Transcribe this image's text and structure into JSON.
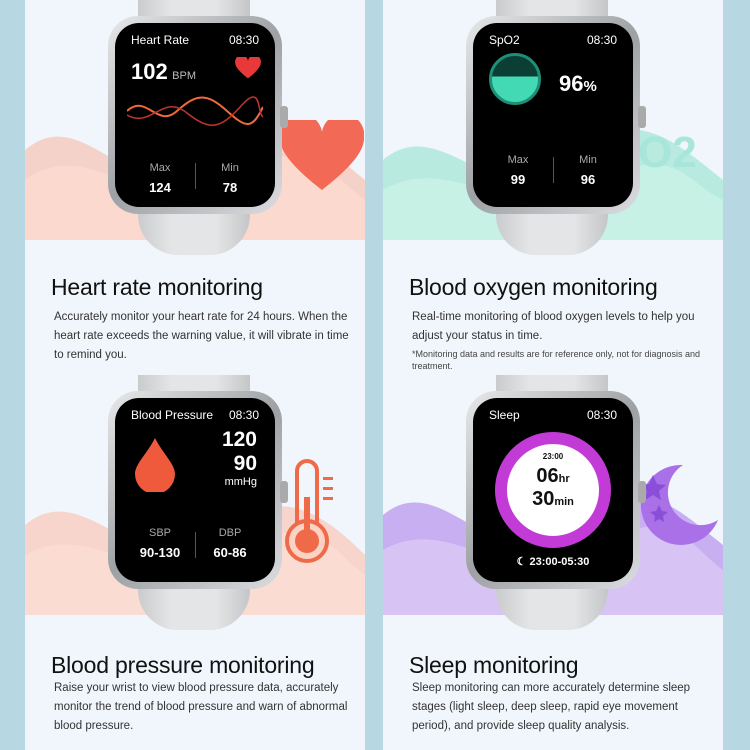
{
  "panels": [
    {
      "screen_title": "Heart Rate",
      "time": "08:30",
      "value": "102",
      "unit": "BPM",
      "left_label": "Max",
      "left_value": "124",
      "right_label": "Min",
      "right_value": "78",
      "heading": "Heart rate monitoring",
      "description": "Accurately monitor your heart rate for 24 hours. When the heart rate exceeds the warning value, it will vibrate in time to remind you."
    },
    {
      "screen_title": "SpO2",
      "time": "08:30",
      "value": "96",
      "unit": "%",
      "left_label": "Max",
      "left_value": "99",
      "right_label": "Min",
      "right_value": "96",
      "heading": "Blood oxygen monitoring",
      "description": "Real-time monitoring of blood oxygen levels to help you adjust your status in time.",
      "note": "*Monitoring data and results are for reference only, not for diagnosis and treatment.",
      "decor_text": "O2"
    },
    {
      "screen_title": "Blood Pressure",
      "time": "08:30",
      "systolic": "120",
      "diastolic": "90",
      "unit": "mmHg",
      "left_label": "SBP",
      "left_value": "90-130",
      "right_label": "DBP",
      "right_value": "60-86",
      "heading": "Blood pressure monitoring",
      "description": "Raise your wrist to view blood pressure data, accurately monitor the trend of blood pressure and warn of abnormal blood pressure."
    },
    {
      "screen_title": "Sleep",
      "time": "08:30",
      "dial_time": "23:00",
      "hours": "06",
      "hours_unit": "hr",
      "minutes": "30",
      "minutes_unit": "min",
      "range": "23:00-05:30",
      "heading": "Sleep monitoring",
      "description": "Sleep monitoring can more accurately determine sleep stages (light sleep, deep sleep, rapid eye movement period), and provide sleep quality analysis."
    }
  ],
  "colors": {
    "heart": "#f0503f",
    "spo2": "#3fd1b0",
    "bp": "#f06040",
    "sleep": "#c23bd6"
  }
}
